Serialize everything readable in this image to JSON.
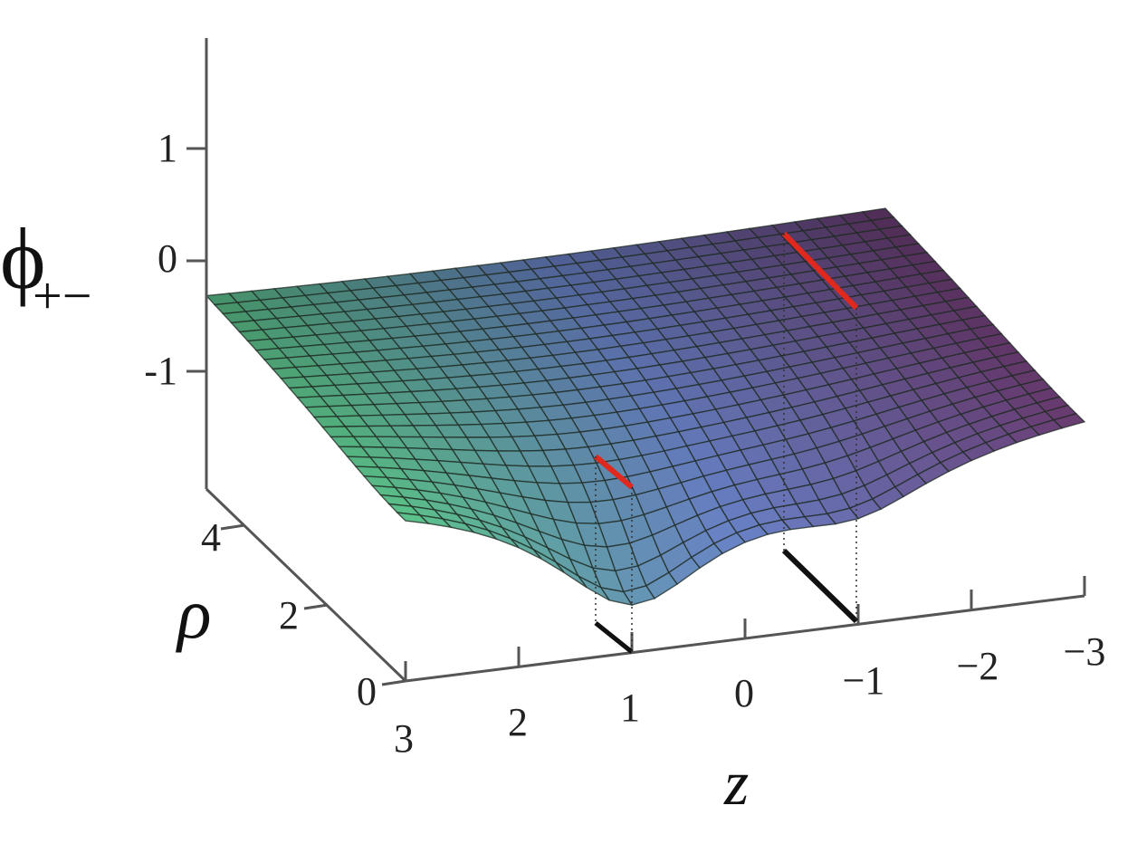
{
  "chart_data": {
    "type": "surface3d",
    "zlabel_main": "ϕ",
    "zlabel_sub": "+−",
    "xlabel": "z",
    "ylabel": "ρ",
    "x_ticks": [
      "3",
      "2",
      "1",
      "0",
      "−1",
      "−2",
      "−3"
    ],
    "y_ticks": [
      "0",
      "2",
      "4"
    ],
    "z_ticks": [
      "1",
      "0",
      "-1"
    ],
    "xlim": [
      -3,
      3
    ],
    "ylim": [
      0,
      4.5
    ],
    "zlim": [
      -1.8,
      1.8
    ],
    "features": {
      "well_positions_z": [
        1,
        -1
      ],
      "well_depths_phi": [
        -1.35,
        -0.6
      ],
      "highlight_segment_rho_range": [
        0,
        1
      ]
    },
    "colors": {
      "surface_near_low": "#5cc48a",
      "surface_mid": "#6a82c8",
      "surface_far_high": "#6a3a70",
      "highlight_segment": "#e0281c",
      "projected_segment": "#111111",
      "axis": "#555555"
    }
  }
}
